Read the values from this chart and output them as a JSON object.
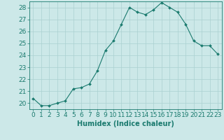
{
  "xlabel": "Humidex (Indice chaleur)",
  "ylabel": "",
  "x": [
    0,
    1,
    2,
    3,
    4,
    5,
    6,
    7,
    8,
    9,
    10,
    11,
    12,
    13,
    14,
    15,
    16,
    17,
    18,
    19,
    20,
    21,
    22,
    23
  ],
  "y": [
    20.4,
    19.8,
    19.8,
    20.0,
    20.2,
    21.2,
    21.3,
    21.6,
    22.7,
    24.4,
    25.2,
    26.6,
    28.0,
    27.6,
    27.4,
    27.8,
    28.4,
    28.0,
    27.6,
    26.6,
    25.2,
    24.8,
    24.8,
    24.1
  ],
  "line_color": "#1a7a6e",
  "marker": "D",
  "marker_size": 2,
  "background_color": "#cce8e8",
  "grid_color": "#aad0d0",
  "ylim": [
    19.5,
    28.5
  ],
  "xlim": [
    -0.5,
    23.5
  ],
  "yticks": [
    20,
    21,
    22,
    23,
    24,
    25,
    26,
    27,
    28
  ],
  "xtick_labels": [
    "0",
    "1",
    "2",
    "3",
    "4",
    "5",
    "6",
    "7",
    "8",
    "9",
    "10",
    "11",
    "12",
    "13",
    "14",
    "15",
    "16",
    "17",
    "18",
    "19",
    "20",
    "21",
    "22",
    "23"
  ],
  "title_fontsize": 7,
  "label_fontsize": 7,
  "tick_fontsize": 6.5
}
